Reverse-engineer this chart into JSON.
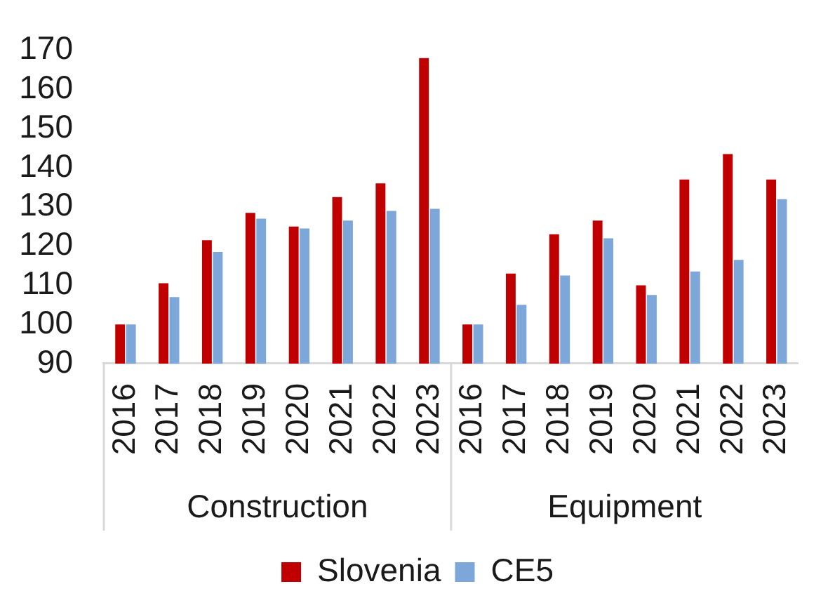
{
  "chart_data": {
    "type": "bar",
    "categories": [
      "2016",
      "2017",
      "2018",
      "2019",
      "2020",
      "2021",
      "2022",
      "2023",
      "2016",
      "2017",
      "2018",
      "2019",
      "2020",
      "2021",
      "2022",
      "2023"
    ],
    "series": [
      {
        "name": "Slovenia",
        "color": "#c00000",
        "values": [
          100,
          110.5,
          121.5,
          128.5,
          125,
          132.5,
          136,
          168,
          100,
          113,
          123,
          126.5,
          110,
          137,
          143.5,
          137
        ]
      },
      {
        "name": "CE5",
        "color": "#7ea7d9",
        "values": [
          100,
          107,
          118.5,
          127,
          124.5,
          126.5,
          129,
          129.5,
          100,
          105,
          112.5,
          122,
          107.5,
          113.5,
          116.5,
          132
        ]
      }
    ],
    "ylim": [
      90,
      170
    ],
    "yticks": [
      90,
      100,
      110,
      120,
      130,
      140,
      150,
      160,
      170
    ],
    "grid": false,
    "legend": "bottom",
    "annotations": [
      "Construction",
      "Equipment"
    ]
  }
}
